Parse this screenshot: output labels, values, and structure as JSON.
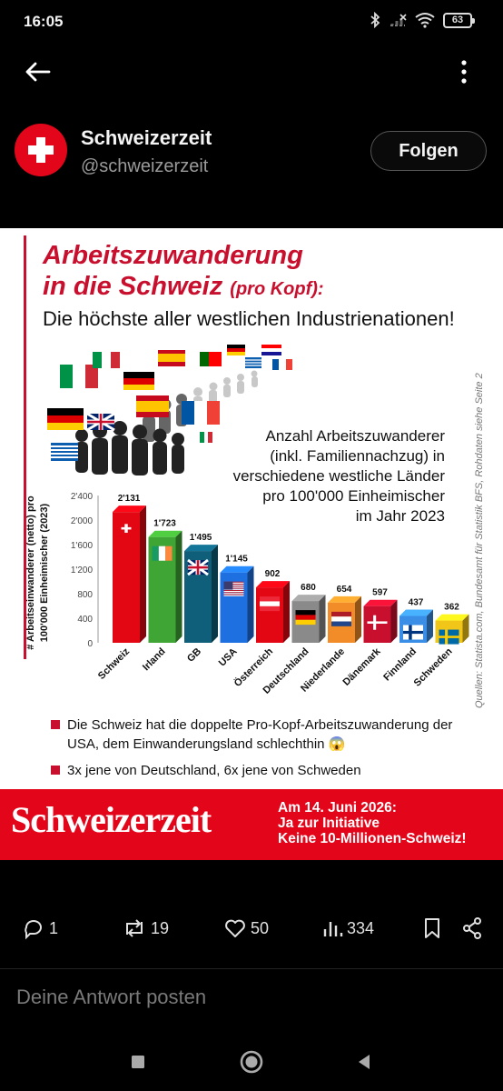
{
  "status_bar": {
    "time": "16:05",
    "battery": "63",
    "icons": [
      "bluetooth-icon",
      "signal-icon",
      "wifi-icon",
      "battery-icon"
    ]
  },
  "nav": {
    "back_icon": "back-arrow-icon",
    "more_icon": "more-vertical-icon"
  },
  "profile": {
    "name": "Schweizerzeit",
    "handle": "@schweizerzeit",
    "follow_label": "Folgen",
    "avatar_color": "#e3061b"
  },
  "post_image": {
    "title_line1": "Arbeitszuwanderung",
    "title_line2": "in die Schweiz",
    "title_line2_small": "(pro Kopf):",
    "subtitle": "Die höchste aller westlichen Industrienationen!",
    "chart_description": [
      "Anzahl Arbeitszuwanderer",
      "(inkl. Familiennachzug) in",
      "verschiedene westliche Länder",
      "pro 100'000 Einheimischer",
      "im Jahr 2023"
    ],
    "source_note": "Quellen: Statista.com, Bundesamt für Statistik BFS, Rohdaten siehe Seite 2",
    "bullets": [
      "Die Schweiz hat die doppelte Pro-Kopf-Arbeitszuwanderung der USA, dem Einwanderungsland schlechthin 😱",
      "3x jene von Deutschland, 6x jene von Schweden"
    ],
    "banner": {
      "logo": "Schweizerzeit",
      "lines": [
        "Am 14. Juni 2026:",
        "Ja zur Initiative",
        "Keine 10-Millionen-Schweiz!"
      ],
      "color": "#e3061b"
    }
  },
  "chart_data": {
    "type": "bar",
    "title": "",
    "ylabel": "# Arbeitseinwanderer (netto) pro 100'000 Einheimischer (2023)",
    "xlabel": "",
    "categories": [
      "Schweiz",
      "Irland",
      "GB",
      "USA",
      "Österreich",
      "Deutschland",
      "Niederlande",
      "Dänemark",
      "Finnland",
      "Schweden"
    ],
    "values": [
      2131,
      1723,
      1495,
      1145,
      902,
      680,
      654,
      597,
      437,
      362
    ],
    "value_labels": [
      "2'131",
      "1'723",
      "1'495",
      "1'145",
      "902",
      "680",
      "654",
      "597",
      "437",
      "362"
    ],
    "y_ticks": [
      "0",
      "400",
      "800",
      "1'200",
      "1'600",
      "2'000",
      "2'400"
    ],
    "y_tick_values": [
      0,
      400,
      800,
      1200,
      1600,
      2000,
      2400
    ],
    "ylim": [
      0,
      2400
    ],
    "grid": false,
    "bar_colors": [
      "#e30613",
      "#3fa535",
      "#0f5e7a",
      "#1e6fe0",
      "#e30613",
      "#8a8a8a",
      "#f28c28",
      "#c8102e",
      "#3a8ee6",
      "#f2c618"
    ],
    "flags": [
      "Switzerland",
      "Ireland",
      "United Kingdom",
      "USA",
      "Austria",
      "Germany",
      "Netherlands",
      "Denmark",
      "Finland",
      "Sweden"
    ]
  },
  "actions": [
    {
      "icon": "reply-icon",
      "count": "1"
    },
    {
      "icon": "repost-icon",
      "count": "19"
    },
    {
      "icon": "like-icon",
      "count": "50"
    },
    {
      "icon": "views-icon",
      "count": "334"
    },
    {
      "icon": "bookmark-icon",
      "count": ""
    },
    {
      "icon": "share-icon",
      "count": ""
    }
  ],
  "reply": {
    "placeholder": "Deine Antwort posten"
  },
  "system_nav": {
    "recents": "recents-button",
    "home": "home-button",
    "back": "back-button"
  }
}
